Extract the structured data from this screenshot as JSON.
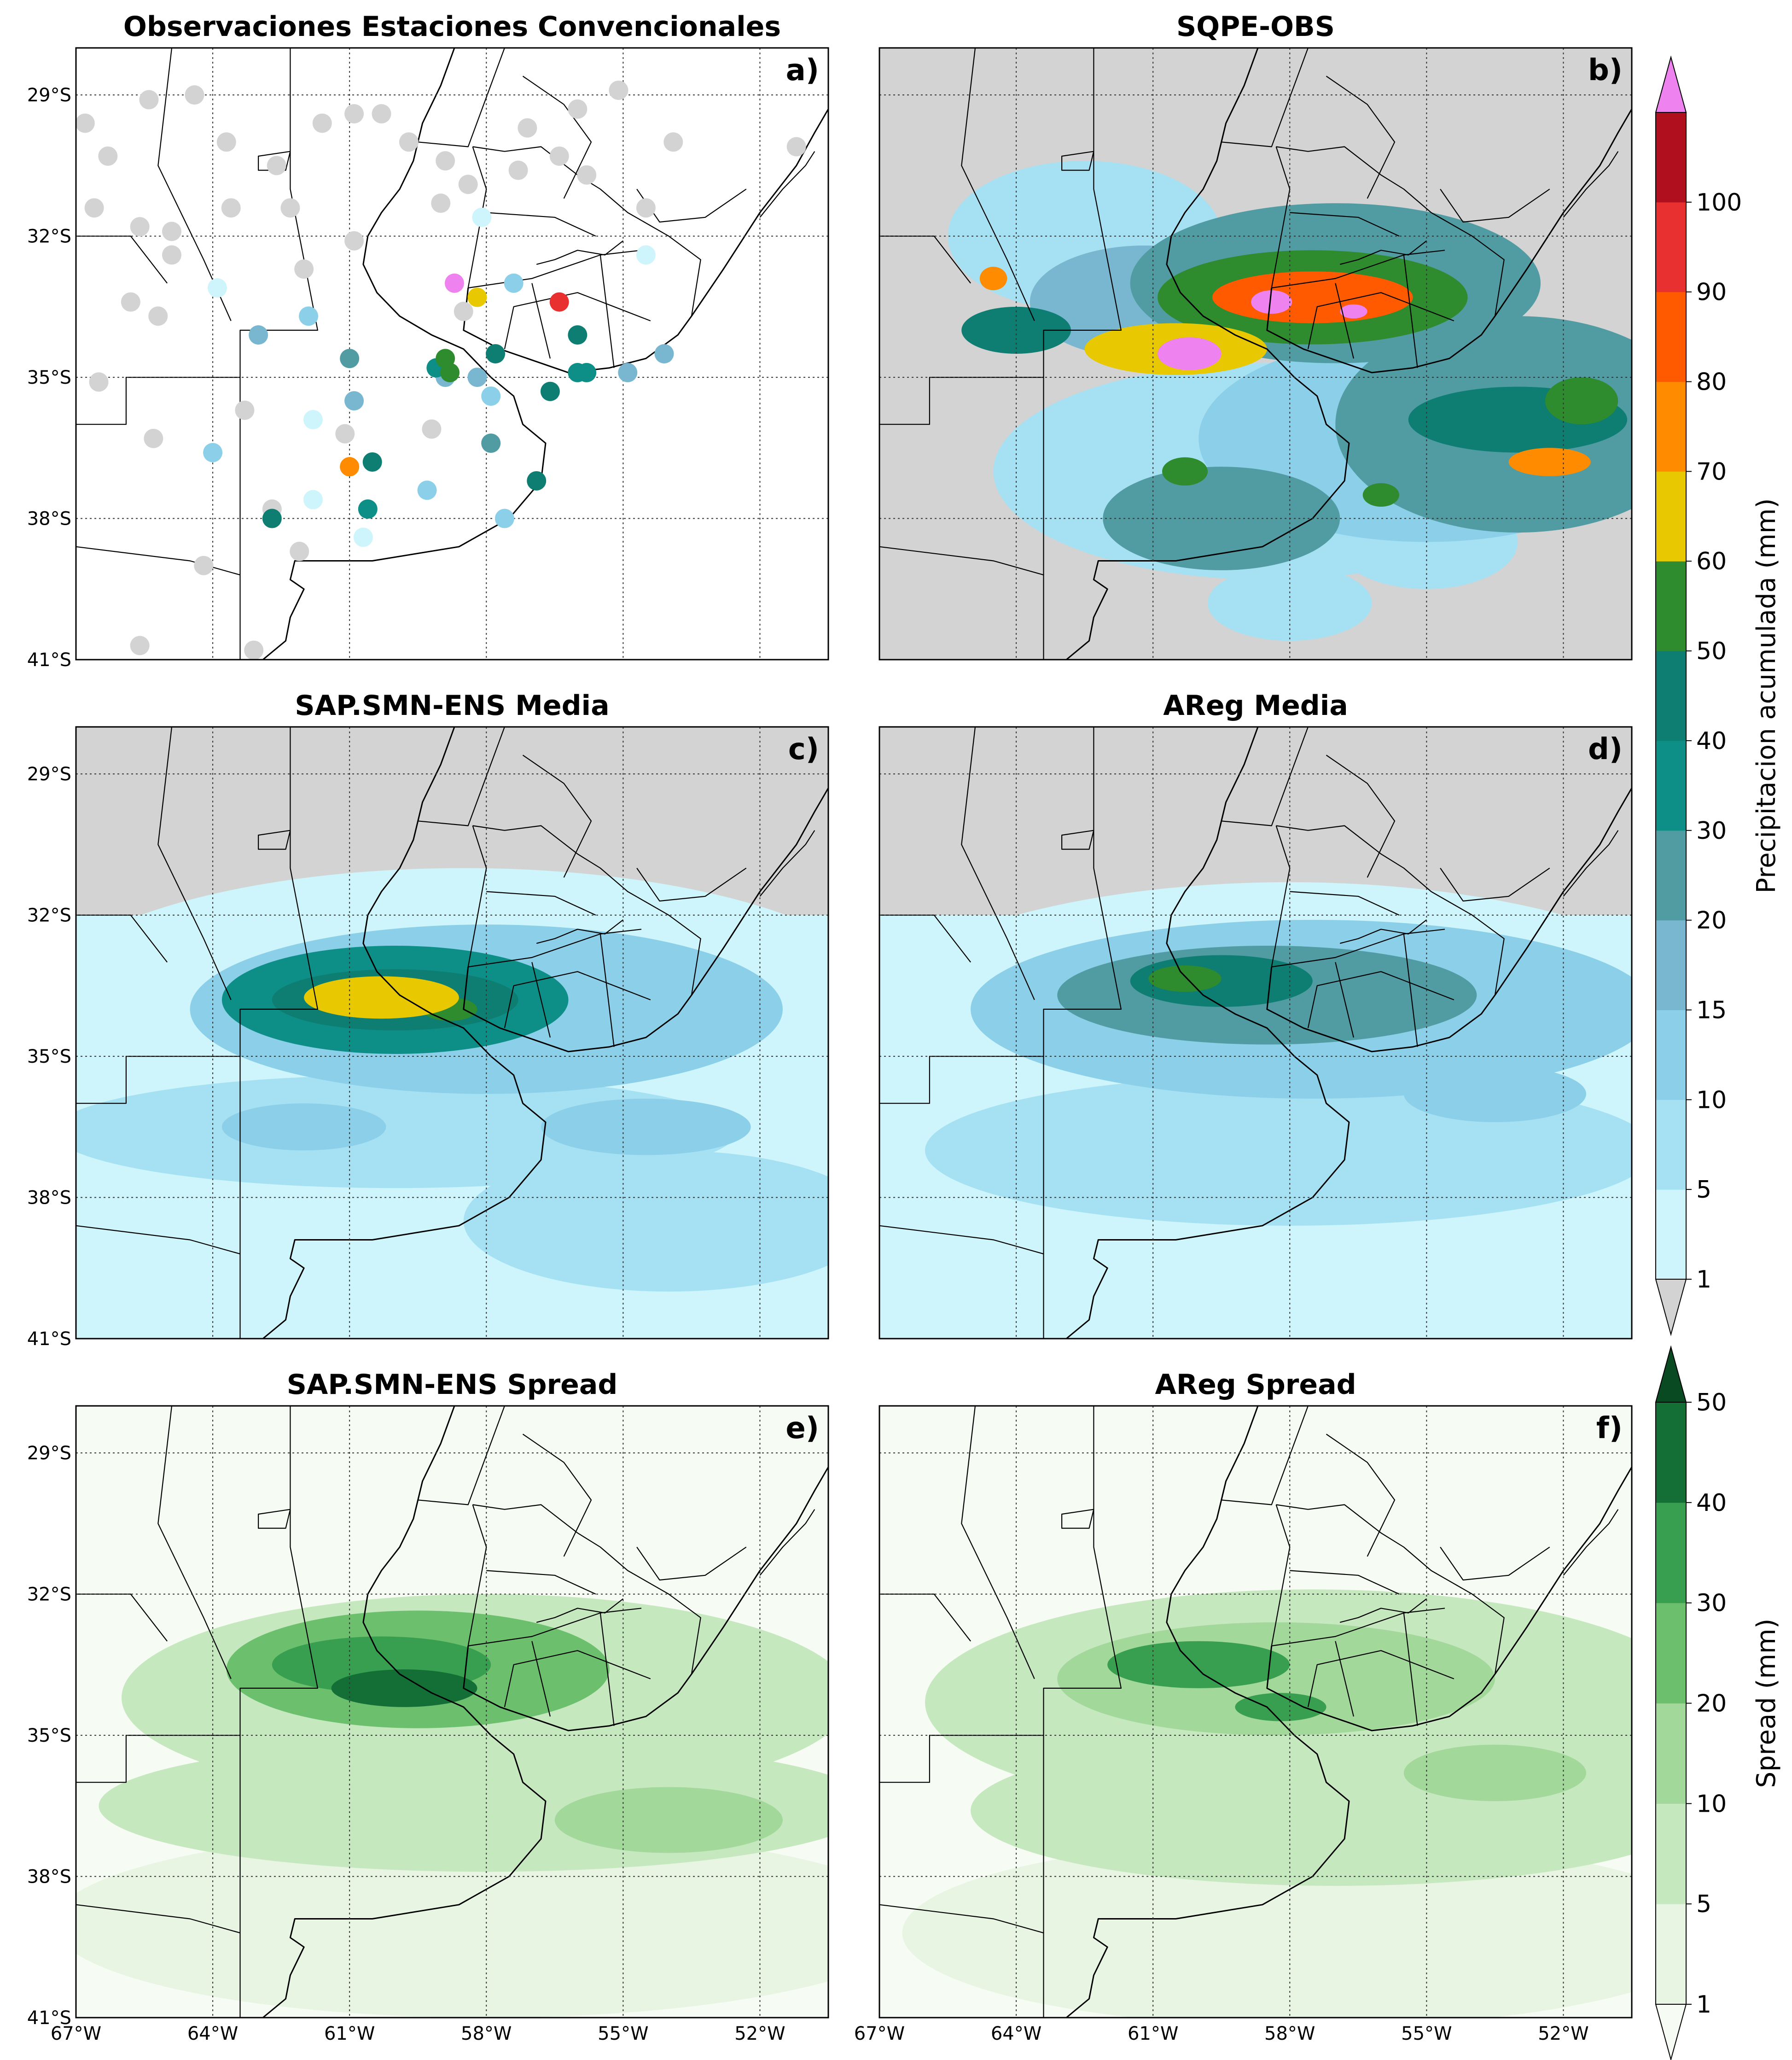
{
  "map_extent": {
    "lon_min": -67,
    "lon_max": -50.5,
    "lat_max": -28,
    "lat_min": -41
  },
  "panels": [
    {
      "id": "a",
      "title": "Observaciones Estaciones Convencionales",
      "label": "a)",
      "kind": "stations",
      "show_lat_ticks": true,
      "show_lon_ticks": false
    },
    {
      "id": "b",
      "title": "SQPE-OBS",
      "label": "b)",
      "kind": "precip",
      "pattern": "sqpe",
      "show_lat_ticks": false,
      "show_lon_ticks": false
    },
    {
      "id": "c",
      "title": "SAP.SMN-ENS Media",
      "label": "c)",
      "kind": "precip",
      "pattern": "sap_mean",
      "show_lat_ticks": true,
      "show_lon_ticks": false
    },
    {
      "id": "d",
      "title": "AReg Media",
      "label": "d)",
      "kind": "precip",
      "pattern": "areg_mean",
      "show_lat_ticks": false,
      "show_lon_ticks": false
    },
    {
      "id": "e",
      "title": "SAP.SMN-ENS Spread",
      "label": "e)",
      "kind": "spread",
      "pattern": "sap_spread",
      "show_lat_ticks": true,
      "show_lon_ticks": true
    },
    {
      "id": "f",
      "title": "AReg Spread",
      "label": "f)",
      "kind": "spread",
      "pattern": "areg_spread",
      "show_lat_ticks": false,
      "show_lon_ticks": true
    }
  ],
  "lat_ticks": [
    "29°S",
    "32°S",
    "35°S",
    "38°S",
    "41°S"
  ],
  "lat_values": [
    -29,
    -32,
    -35,
    -38,
    -41
  ],
  "lon_ticks": [
    "67°W",
    "64°W",
    "61°W",
    "58°W",
    "55°W",
    "52°W"
  ],
  "lon_values": [
    -67,
    -64,
    -61,
    -58,
    -55,
    -52
  ],
  "land_color": "#d3d3d3",
  "colorbars": {
    "precip": {
      "label": "Precipitacion acumulada (mm)",
      "levels": [
        1,
        5,
        10,
        15,
        20,
        30,
        40,
        50,
        60,
        70,
        80,
        90,
        100
      ],
      "tick_labels": [
        "1",
        "5",
        "10",
        "15",
        "20",
        "30",
        "40",
        "50",
        "60",
        "70",
        "80",
        "90",
        "100"
      ],
      "colors": [
        "#cdf5fb",
        "#a6e1f3",
        "#8ccfe9",
        "#78b7cf",
        "#519ca3",
        "#0d8f87",
        "#0e7d72",
        "#2e8b2e",
        "#e8c800",
        "#ff8c00",
        "#ff5a00",
        "#e83030",
        "#b0101e"
      ],
      "under_color": "#d3d3d3",
      "over_color": "#ee82ee"
    },
    "spread": {
      "label": "Spread (mm)",
      "levels": [
        1,
        5,
        10,
        20,
        30,
        40,
        50
      ],
      "tick_labels": [
        "1",
        "5",
        "10",
        "20",
        "30",
        "40",
        "50"
      ],
      "colors": [
        "#e8f5e3",
        "#c6e8bf",
        "#a2d89a",
        "#6cbf6c",
        "#389e50",
        "#136f36"
      ],
      "under_color": "#f6fbf3",
      "over_color": "#0a4a22"
    }
  },
  "stations": [
    {
      "lon": -66.8,
      "lat": -29.6,
      "mm": 0
    },
    {
      "lon": -66.3,
      "lat": -30.3,
      "mm": 0
    },
    {
      "lon": -65.4,
      "lat": -29.1,
      "mm": 0
    },
    {
      "lon": -66.6,
      "lat": -31.4,
      "mm": 0
    },
    {
      "lon": -65.6,
      "lat": -31.8,
      "mm": 0
    },
    {
      "lon": -64.9,
      "lat": -31.9,
      "mm": 0
    },
    {
      "lon": -64.4,
      "lat": -29.0,
      "mm": 0
    },
    {
      "lon": -63.7,
      "lat": -30.0,
      "mm": 0
    },
    {
      "lon": -62.6,
      "lat": -30.5,
      "mm": 0
    },
    {
      "lon": -61.6,
      "lat": -29.6,
      "mm": 0
    },
    {
      "lon": -60.9,
      "lat": -29.4,
      "mm": 0
    },
    {
      "lon": -60.3,
      "lat": -29.4,
      "mm": 0
    },
    {
      "lon": -59.7,
      "lat": -30.0,
      "mm": 0
    },
    {
      "lon": -58.9,
      "lat": -30.4,
      "mm": 0
    },
    {
      "lon": -58.4,
      "lat": -30.9,
      "mm": 0
    },
    {
      "lon": -59.0,
      "lat": -31.3,
      "mm": 0
    },
    {
      "lon": -62.3,
      "lat": -31.4,
      "mm": 0
    },
    {
      "lon": -63.6,
      "lat": -31.4,
      "mm": 0
    },
    {
      "lon": -60.9,
      "lat": -32.1,
      "mm": 0
    },
    {
      "lon": -55.1,
      "lat": -28.9,
      "mm": 0
    },
    {
      "lon": -56.0,
      "lat": -29.3,
      "mm": 0
    },
    {
      "lon": -57.1,
      "lat": -29.7,
      "mm": 0
    },
    {
      "lon": -56.4,
      "lat": -30.3,
      "mm": 0
    },
    {
      "lon": -55.8,
      "lat": -30.7,
      "mm": 0
    },
    {
      "lon": -57.3,
      "lat": -30.6,
      "mm": 0
    },
    {
      "lon": -54.5,
      "lat": -31.4,
      "mm": 0
    },
    {
      "lon": -53.9,
      "lat": -30.0,
      "mm": 0
    },
    {
      "lon": -51.2,
      "lat": -30.1,
      "mm": 0
    },
    {
      "lon": -62.0,
      "lat": -32.7,
      "mm": 0
    },
    {
      "lon": -65.8,
      "lat": -33.4,
      "mm": 0
    },
    {
      "lon": -65.2,
      "lat": -33.7,
      "mm": 0
    },
    {
      "lon": -64.9,
      "lat": -32.4,
      "mm": 0
    },
    {
      "lon": -66.5,
      "lat": -35.1,
      "mm": 0
    },
    {
      "lon": -65.3,
      "lat": -36.3,
      "mm": 0
    },
    {
      "lon": -63.3,
      "lat": -35.7,
      "mm": 0
    },
    {
      "lon": -61.1,
      "lat": -36.2,
      "mm": 0
    },
    {
      "lon": -59.2,
      "lat": -36.1,
      "mm": 0
    },
    {
      "lon": -62.7,
      "lat": -37.8,
      "mm": 0
    },
    {
      "lon": -62.1,
      "lat": -38.7,
      "mm": 0
    },
    {
      "lon": -64.2,
      "lat": -39.0,
      "mm": 0
    },
    {
      "lon": -65.6,
      "lat": -40.7,
      "mm": 0
    },
    {
      "lon": -63.1,
      "lat": -40.8,
      "mm": 0
    },
    {
      "lon": -58.5,
      "lat": -33.6,
      "mm": 0
    },
    {
      "lon": -63.9,
      "lat": -33.1,
      "mm": 3
    },
    {
      "lon": -61.8,
      "lat": -35.9,
      "mm": 3
    },
    {
      "lon": -61.8,
      "lat": -37.6,
      "mm": 3
    },
    {
      "lon": -60.7,
      "lat": -38.4,
      "mm": 3
    },
    {
      "lon": -58.1,
      "lat": -31.6,
      "mm": 3
    },
    {
      "lon": -54.5,
      "lat": -32.4,
      "mm": 3
    },
    {
      "lon": -61.9,
      "lat": -33.7,
      "mm": 12
    },
    {
      "lon": -64.0,
      "lat": -36.6,
      "mm": 12
    },
    {
      "lon": -59.3,
      "lat": -37.4,
      "mm": 12
    },
    {
      "lon": -57.9,
      "lat": -35.4,
      "mm": 12
    },
    {
      "lon": -57.6,
      "lat": -38.0,
      "mm": 12
    },
    {
      "lon": -57.4,
      "lat": -33.0,
      "mm": 12
    },
    {
      "lon": -63.0,
      "lat": -34.1,
      "mm": 18
    },
    {
      "lon": -60.9,
      "lat": -35.5,
      "mm": 18
    },
    {
      "lon": -58.9,
      "lat": -35.0,
      "mm": 18
    },
    {
      "lon": -58.2,
      "lat": -35.0,
      "mm": 18
    },
    {
      "lon": -54.9,
      "lat": -34.9,
      "mm": 18
    },
    {
      "lon": -54.1,
      "lat": -34.5,
      "mm": 18
    },
    {
      "lon": -61.0,
      "lat": -34.6,
      "mm": 25
    },
    {
      "lon": -57.9,
      "lat": -36.4,
      "mm": 25
    },
    {
      "lon": -59.1,
      "lat": -34.8,
      "mm": 35
    },
    {
      "lon": -56.0,
      "lat": -34.9,
      "mm": 35
    },
    {
      "lon": -55.8,
      "lat": -34.9,
      "mm": 35
    },
    {
      "lon": -60.6,
      "lat": -37.8,
      "mm": 38
    },
    {
      "lon": -57.8,
      "lat": -34.5,
      "mm": 45
    },
    {
      "lon": -56.0,
      "lat": -34.1,
      "mm": 45
    },
    {
      "lon": -56.6,
      "lat": -35.3,
      "mm": 45
    },
    {
      "lon": -56.9,
      "lat": -37.2,
      "mm": 45
    },
    {
      "lon": -60.5,
      "lat": -36.8,
      "mm": 45
    },
    {
      "lon": -62.7,
      "lat": -38.0,
      "mm": 45
    },
    {
      "lon": -58.9,
      "lat": -34.6,
      "mm": 55
    },
    {
      "lon": -58.8,
      "lat": -34.9,
      "mm": 55
    },
    {
      "lon": -61.0,
      "lat": -36.9,
      "mm": 72
    },
    {
      "lon": -58.2,
      "lat": -33.3,
      "mm": 65
    },
    {
      "lon": -56.4,
      "lat": -33.4,
      "mm": 95
    },
    {
      "lon": -58.7,
      "lat": -33.0,
      "mm": 105
    }
  ],
  "fields": {
    "sqpe": [
      {
        "lon": -60.5,
        "lat": -34.4,
        "rx": 2.0,
        "ry": 0.55,
        "v": 60
      },
      {
        "lon": -60.2,
        "lat": -34.5,
        "rx": 0.7,
        "ry": 0.35,
        "v": 110
      },
      {
        "lon": -57.5,
        "lat": -33.3,
        "rx": 3.4,
        "ry": 1.0,
        "v": 55
      },
      {
        "lon": -57.5,
        "lat": -33.3,
        "rx": 2.2,
        "ry": 0.55,
        "v": 85
      },
      {
        "lon": -58.4,
        "lat": -33.4,
        "rx": 0.45,
        "ry": 0.25,
        "v": 110
      },
      {
        "lon": -56.6,
        "lat": -33.6,
        "rx": 0.3,
        "ry": 0.15,
        "v": 110
      },
      {
        "lon": -57.0,
        "lat": -33.0,
        "rx": 4.5,
        "ry": 1.7,
        "v": 25
      },
      {
        "lon": -61.2,
        "lat": -33.4,
        "rx": 2.5,
        "ry": 1.2,
        "v": 18
      },
      {
        "lon": -64.0,
        "lat": -34.0,
        "rx": 1.2,
        "ry": 0.5,
        "v": 40
      },
      {
        "lon": -64.5,
        "lat": -32.9,
        "rx": 0.3,
        "ry": 0.25,
        "v": 75
      },
      {
        "lon": -53.0,
        "lat": -35.9,
        "rx": 2.4,
        "ry": 0.7,
        "v": 45
      },
      {
        "lon": -52.3,
        "lat": -36.8,
        "rx": 0.9,
        "ry": 0.3,
        "v": 75
      },
      {
        "lon": -51.6,
        "lat": -35.5,
        "rx": 0.8,
        "ry": 0.5,
        "v": 55
      },
      {
        "lon": -55.0,
        "lat": -36.3,
        "rx": 5.0,
        "ry": 2.2,
        "v": 12
      },
      {
        "lon": -58.5,
        "lat": -37.0,
        "rx": 6.0,
        "ry": 2.3,
        "v": 8
      },
      {
        "lon": -60.3,
        "lat": -37.0,
        "rx": 0.5,
        "ry": 0.3,
        "v": 55
      },
      {
        "lon": -56.0,
        "lat": -37.5,
        "rx": 0.4,
        "ry": 0.25,
        "v": 55
      },
      {
        "lon": -53.0,
        "lat": -36.0,
        "rx": 4.0,
        "ry": 2.3,
        "v": 20
      },
      {
        "lon": -59.5,
        "lat": -38.0,
        "rx": 2.6,
        "ry": 1.1,
        "v": 20
      },
      {
        "lon": -55.0,
        "lat": -38.5,
        "rx": 2.0,
        "ry": 1.0,
        "v": 8
      },
      {
        "lon": -58.0,
        "lat": -39.8,
        "rx": 1.8,
        "ry": 0.8,
        "v": 6
      },
      {
        "lon": -62.5,
        "lat": -32.0,
        "rx": 3.0,
        "ry": 1.6,
        "v": 6
      }
    ],
    "sap_mean": [
      {
        "lon": -60.0,
        "lat": -33.8,
        "rx": 3.8,
        "ry": 1.15,
        "v": 30
      },
      {
        "lon": -60.0,
        "lat": -33.8,
        "rx": 2.7,
        "ry": 0.65,
        "v": 48
      },
      {
        "lon": -60.3,
        "lat": -33.75,
        "rx": 1.7,
        "ry": 0.45,
        "v": 62
      },
      {
        "lon": -58.8,
        "lat": -34.0,
        "rx": 0.6,
        "ry": 0.25,
        "v": 55
      },
      {
        "lon": -58.0,
        "lat": -34.0,
        "rx": 6.5,
        "ry": 1.8,
        "v": 14
      },
      {
        "lon": -58.5,
        "lat": -34.0,
        "rx": 9.5,
        "ry": 3.0,
        "v": 4
      },
      {
        "lon": -60.0,
        "lat": -36.6,
        "rx": 7.5,
        "ry": 1.2,
        "v": 7
      },
      {
        "lon": -54.5,
        "lat": -36.5,
        "rx": 2.3,
        "ry": 0.6,
        "v": 12
      },
      {
        "lon": -62.0,
        "lat": -36.5,
        "rx": 1.8,
        "ry": 0.5,
        "v": 11
      },
      {
        "lon": -57.0,
        "lat": -39.6,
        "rx": 9.0,
        "ry": 1.4,
        "v": 3
      },
      {
        "lon": -54.0,
        "lat": -38.5,
        "rx": 4.5,
        "ry": 1.5,
        "v": 6
      }
    ],
    "areg_mean": [
      {
        "lon": -58.5,
        "lat": -33.7,
        "rx": 4.6,
        "ry": 1.05,
        "v": 27
      },
      {
        "lon": -59.5,
        "lat": -33.4,
        "rx": 2.0,
        "ry": 0.55,
        "v": 42
      },
      {
        "lon": -60.3,
        "lat": -33.35,
        "rx": 0.8,
        "ry": 0.28,
        "v": 55
      },
      {
        "lon": -57.5,
        "lat": -34.0,
        "rx": 7.5,
        "ry": 1.9,
        "v": 12
      },
      {
        "lon": -58.0,
        "lat": -34.8,
        "rx": 10.0,
        "ry": 3.5,
        "v": 4
      },
      {
        "lon": -58.0,
        "lat": -37.0,
        "rx": 8.0,
        "ry": 1.6,
        "v": 6
      },
      {
        "lon": -53.5,
        "lat": -35.8,
        "rx": 2.0,
        "ry": 0.6,
        "v": 11
      },
      {
        "lon": -55.5,
        "lat": -39.6,
        "rx": 8.0,
        "ry": 1.5,
        "v": 3
      }
    ],
    "sap_spread": [
      {
        "lon": -59.5,
        "lat": -33.6,
        "rx": 4.2,
        "ry": 1.25,
        "v": 20
      },
      {
        "lon": -60.3,
        "lat": -33.5,
        "rx": 2.4,
        "ry": 0.6,
        "v": 32
      },
      {
        "lon": -59.8,
        "lat": -34.0,
        "rx": 1.6,
        "ry": 0.4,
        "v": 42
      },
      {
        "lon": -58.0,
        "lat": -34.2,
        "rx": 8.0,
        "ry": 2.2,
        "v": 8
      },
      {
        "lon": -58.0,
        "lat": -36.5,
        "rx": 8.5,
        "ry": 1.4,
        "v": 6
      },
      {
        "lon": -54.0,
        "lat": -36.8,
        "rx": 2.5,
        "ry": 0.7,
        "v": 11
      },
      {
        "lon": -58.0,
        "lat": -39.0,
        "rx": 9.5,
        "ry": 2.0,
        "v": 2
      }
    ],
    "areg_spread": [
      {
        "lon": -58.3,
        "lat": -33.8,
        "rx": 4.8,
        "ry": 1.2,
        "v": 18
      },
      {
        "lon": -60.0,
        "lat": -33.5,
        "rx": 2.0,
        "ry": 0.5,
        "v": 30
      },
      {
        "lon": -58.2,
        "lat": -34.4,
        "rx": 1.0,
        "ry": 0.3,
        "v": 36
      },
      {
        "lon": -57.5,
        "lat": -34.3,
        "rx": 8.5,
        "ry": 2.4,
        "v": 7
      },
      {
        "lon": -57.0,
        "lat": -36.6,
        "rx": 8.0,
        "ry": 1.6,
        "v": 6
      },
      {
        "lon": -53.5,
        "lat": -35.8,
        "rx": 2.0,
        "ry": 0.6,
        "v": 11
      },
      {
        "lon": -57.5,
        "lat": -39.2,
        "rx": 9.0,
        "ry": 2.0,
        "v": 2
      }
    ]
  }
}
